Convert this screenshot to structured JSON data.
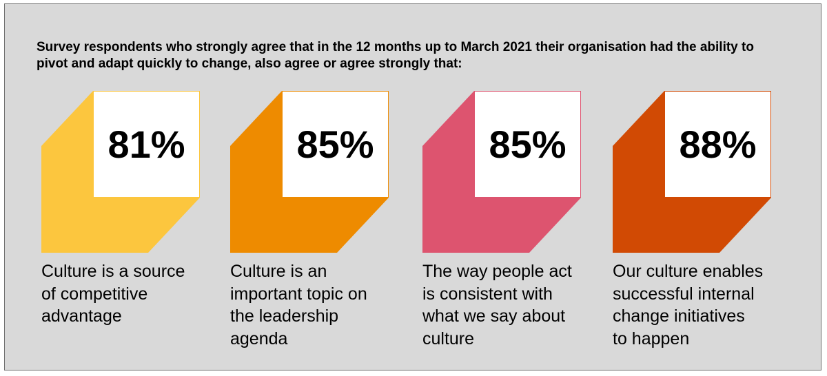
{
  "headline": "Survey respondents who strongly agree that in the 12 months up to March 2021 their organisation had the ability to pivot and adapt quickly to  change, also agree or agree strongly that:",
  "stats": [
    {
      "value": "81%",
      "caption": "Culture is a source\nof competitive\nadvantage",
      "color": "#fcc63e"
    },
    {
      "value": "85%",
      "caption": "Culture is an\nimportant topic on\nthe leadership\nagenda",
      "color": "#ee8b00"
    },
    {
      "value": "85%",
      "caption": "The way people act\nis consistent with\nwhat we say about\nculture",
      "color": "#dd546f"
    },
    {
      "value": "88%",
      "caption": "Our culture enables\nsuccessful internal\nchange initiatives\nto happen",
      "color": "#d14a04"
    }
  ]
}
